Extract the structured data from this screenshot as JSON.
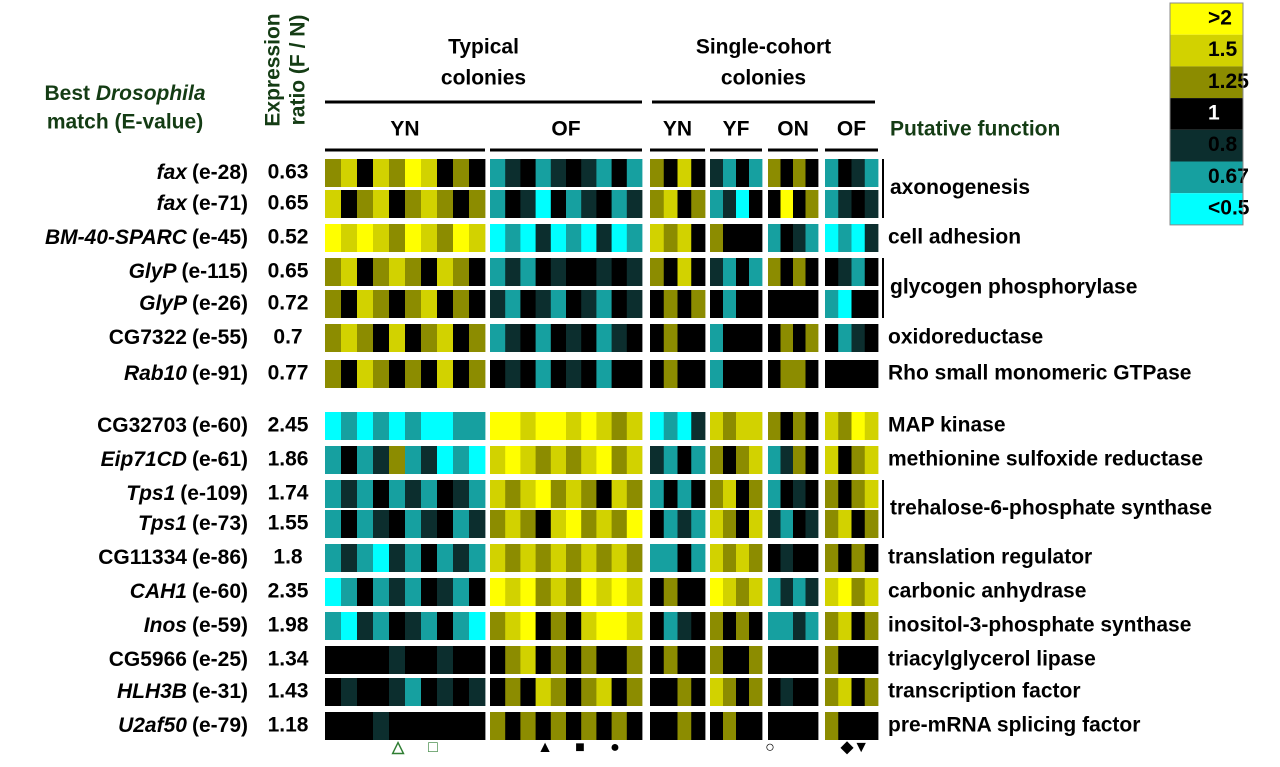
{
  "chart_data": {
    "type": "heatmap",
    "left_header": {
      "line1": "Best",
      "italic": "Drosophila",
      "line2": "match (E-value)"
    },
    "ratio_header": [
      "Expression",
      "ratio (F / N)"
    ],
    "function_header": "Putative function",
    "groups": [
      {
        "title": [
          "Typical",
          "colonies"
        ],
        "blocks": [
          "YN",
          "OF"
        ]
      },
      {
        "title": [
          "Single-cohort",
          "colonies"
        ],
        "blocks": [
          "YN",
          "YF",
          "ON",
          "OF"
        ]
      }
    ],
    "legend": [
      {
        "label": ">2",
        "color": "#ffff00"
      },
      {
        "label": "1.5",
        "color": "#d2d200"
      },
      {
        "label": "1.25",
        "color": "#8c8c00"
      },
      {
        "label": "1",
        "color": "#000000"
      },
      {
        "label": "0.8",
        "color": "#0c2e2e"
      },
      {
        "label": "0.67",
        "color": "#16a0a0"
      },
      {
        "label": "<0.5",
        "color": "#00ffff"
      }
    ],
    "rows": [
      {
        "name": "fax",
        "italic": true,
        "evalue": "(e-28)",
        "ratio": 0.63,
        "function": "axonogenesis",
        "cells": [
          [
            4,
            5,
            3,
            5,
            4,
            6,
            5,
            3,
            4,
            3
          ],
          [
            1,
            2,
            3,
            1,
            2,
            3,
            2,
            1,
            3,
            1
          ],
          [
            4,
            3,
            5,
            3
          ],
          [
            2,
            1,
            3,
            1
          ],
          [
            4,
            3,
            4,
            3
          ],
          [
            1,
            3,
            2,
            1
          ]
        ]
      },
      {
        "name": "fax",
        "italic": true,
        "evalue": "(e-71)",
        "ratio": 0.65,
        "function": null,
        "cells": [
          [
            5,
            3,
            4,
            5,
            3,
            4,
            5,
            4,
            3,
            4
          ],
          [
            1,
            3,
            2,
            0,
            3,
            1,
            2,
            3,
            1,
            2
          ],
          [
            4,
            5,
            3,
            4
          ],
          [
            1,
            2,
            0,
            3
          ],
          [
            3,
            6,
            3,
            4
          ],
          [
            1,
            2,
            3,
            2
          ]
        ]
      },
      {
        "name": "BM-40-SPARC",
        "italic": true,
        "evalue": "(e-45)",
        "ratio": 0.52,
        "function": "cell adhesion",
        "cells": [
          [
            6,
            5,
            6,
            5,
            4,
            6,
            5,
            4,
            6,
            5
          ],
          [
            0,
            1,
            0,
            2,
            0,
            1,
            0,
            2,
            0,
            1
          ],
          [
            5,
            4,
            5,
            3
          ],
          [
            4,
            3,
            3,
            3
          ],
          [
            1,
            3,
            2,
            1
          ],
          [
            0,
            1,
            0,
            2
          ]
        ]
      },
      {
        "name": "GlyP",
        "italic": true,
        "evalue": "(e-115)",
        "ratio": 0.65,
        "function": "glycogen phosphorylase",
        "cells": [
          [
            4,
            5,
            3,
            4,
            5,
            4,
            3,
            5,
            4,
            3
          ],
          [
            1,
            2,
            1,
            3,
            2,
            3,
            3,
            2,
            3,
            2
          ],
          [
            4,
            3,
            5,
            3
          ],
          [
            2,
            1,
            3,
            1
          ],
          [
            4,
            3,
            4,
            3
          ],
          [
            3,
            2,
            1,
            3
          ]
        ]
      },
      {
        "name": "GlyP",
        "italic": true,
        "evalue": "(e-26)",
        "ratio": 0.72,
        "function": null,
        "cells": [
          [
            4,
            3,
            5,
            4,
            3,
            4,
            5,
            3,
            4,
            3
          ],
          [
            2,
            1,
            3,
            2,
            1,
            3,
            2,
            1,
            3,
            2
          ],
          [
            3,
            4,
            3,
            4
          ],
          [
            3,
            1,
            3,
            3
          ],
          [
            3,
            3,
            3,
            3
          ],
          [
            1,
            0,
            3,
            3
          ]
        ]
      },
      {
        "name": "CG7322",
        "italic": false,
        "evalue": "(e-55)",
        "ratio": 0.7,
        "function": "oxidoreductase",
        "cells": [
          [
            4,
            5,
            4,
            3,
            5,
            3,
            4,
            5,
            3,
            4
          ],
          [
            1,
            2,
            3,
            1,
            3,
            2,
            3,
            1,
            2,
            3
          ],
          [
            3,
            4,
            3,
            3
          ],
          [
            1,
            3,
            3,
            3
          ],
          [
            3,
            4,
            3,
            4
          ],
          [
            3,
            1,
            2,
            3
          ]
        ]
      },
      {
        "name": "Rab10",
        "italic": true,
        "evalue": "(e-91)",
        "ratio": 0.77,
        "function": "Rho small monomeric GTPase",
        "cells": [
          [
            4,
            3,
            5,
            4,
            3,
            4,
            3,
            5,
            3,
            4
          ],
          [
            3,
            2,
            3,
            1,
            3,
            2,
            3,
            1,
            3,
            3
          ],
          [
            3,
            4,
            3,
            3
          ],
          [
            1,
            3,
            3,
            3
          ],
          [
            3,
            4,
            4,
            3
          ],
          [
            3,
            3,
            3,
            3
          ]
        ]
      },
      {
        "name": "CG32703",
        "italic": false,
        "evalue": "(e-60)",
        "ratio": 2.45,
        "function": "MAP kinase",
        "cells": [
          [
            0,
            1,
            0,
            1,
            0,
            1,
            0,
            0,
            1,
            1
          ],
          [
            6,
            6,
            5,
            6,
            6,
            5,
            6,
            5,
            4,
            5
          ],
          [
            0,
            1,
            0,
            2
          ],
          [
            5,
            4,
            5,
            5
          ],
          [
            4,
            3,
            4,
            3
          ],
          [
            5,
            4,
            6,
            5
          ]
        ]
      },
      {
        "name": "Eip71CD",
        "italic": true,
        "evalue": "(e-61)",
        "ratio": 1.86,
        "function": "methionine sulfoxide reductase",
        "cells": [
          [
            1,
            3,
            1,
            2,
            4,
            1,
            2,
            0,
            1,
            0
          ],
          [
            5,
            6,
            5,
            4,
            5,
            4,
            5,
            6,
            4,
            5
          ],
          [
            2,
            1,
            3,
            1
          ],
          [
            4,
            3,
            4,
            5
          ],
          [
            1,
            2,
            4,
            3
          ],
          [
            5,
            3,
            4,
            5
          ]
        ]
      },
      {
        "name": "Tps1",
        "italic": true,
        "evalue": "(e-109)",
        "ratio": 1.74,
        "function": "trehalose-6-phosphate synthase",
        "cells": [
          [
            1,
            2,
            1,
            3,
            1,
            2,
            1,
            3,
            2,
            1
          ],
          [
            5,
            4,
            5,
            6,
            4,
            5,
            4,
            3,
            5,
            4
          ],
          [
            1,
            3,
            1,
            3
          ],
          [
            4,
            5,
            3,
            4
          ],
          [
            1,
            3,
            2,
            3
          ],
          [
            4,
            3,
            4,
            5
          ]
        ]
      },
      {
        "name": "Tps1",
        "italic": true,
        "evalue": "(e-73)",
        "ratio": 1.55,
        "function": null,
        "cells": [
          [
            1,
            3,
            1,
            2,
            3,
            1,
            2,
            3,
            1,
            2
          ],
          [
            4,
            5,
            4,
            3,
            5,
            6,
            4,
            5,
            4,
            6
          ],
          [
            3,
            1,
            2,
            1
          ],
          [
            5,
            4,
            3,
            5
          ],
          [
            2,
            1,
            3,
            2
          ],
          [
            4,
            5,
            3,
            4
          ]
        ]
      },
      {
        "name": "CG11334",
        "italic": false,
        "evalue": "(e-86)",
        "ratio": 1.8,
        "function": "translation regulator",
        "cells": [
          [
            1,
            2,
            1,
            0,
            2,
            1,
            3,
            1,
            2,
            1
          ],
          [
            5,
            4,
            5,
            4,
            5,
            4,
            5,
            4,
            5,
            4
          ],
          [
            1,
            1,
            3,
            1
          ],
          [
            5,
            4,
            5,
            4
          ],
          [
            3,
            2,
            3,
            3
          ],
          [
            4,
            3,
            4,
            3
          ]
        ]
      },
      {
        "name": "CAH1",
        "italic": true,
        "evalue": "(e-60)",
        "ratio": 2.35,
        "function": "carbonic anhydrase",
        "cells": [
          [
            0,
            1,
            3,
            1,
            2,
            1,
            3,
            2,
            1,
            3
          ],
          [
            6,
            5,
            6,
            4,
            5,
            4,
            6,
            5,
            6,
            5
          ],
          [
            3,
            4,
            3,
            3
          ],
          [
            6,
            5,
            4,
            5
          ],
          [
            1,
            2,
            1,
            2
          ],
          [
            5,
            6,
            4,
            5
          ]
        ]
      },
      {
        "name": "Inos",
        "italic": true,
        "evalue": "(e-59)",
        "ratio": 1.98,
        "function": "inositol-3-phosphate synthase",
        "cells": [
          [
            1,
            0,
            2,
            1,
            3,
            2,
            1,
            3,
            1,
            0
          ],
          [
            4,
            5,
            6,
            3,
            4,
            3,
            5,
            6,
            6,
            5
          ],
          [
            3,
            1,
            2,
            3
          ],
          [
            4,
            3,
            4,
            3
          ],
          [
            1,
            1,
            2,
            1
          ],
          [
            4,
            5,
            3,
            4
          ]
        ]
      },
      {
        "name": "CG5966",
        "italic": false,
        "evalue": "(e-25)",
        "ratio": 1.34,
        "function": "triacylglycerol lipase",
        "cells": [
          [
            3,
            3,
            3,
            3,
            2,
            3,
            3,
            2,
            3,
            3
          ],
          [
            3,
            4,
            5,
            3,
            4,
            3,
            4,
            3,
            3,
            4
          ],
          [
            3,
            4,
            3,
            3
          ],
          [
            4,
            3,
            3,
            4
          ],
          [
            3,
            3,
            3,
            3
          ],
          [
            4,
            3,
            3,
            3
          ]
        ]
      },
      {
        "name": "HLH3B",
        "italic": true,
        "evalue": "(e-31)",
        "ratio": 1.43,
        "function": "transcription factor",
        "cells": [
          [
            3,
            2,
            3,
            3,
            2,
            1,
            3,
            2,
            3,
            2
          ],
          [
            3,
            4,
            3,
            5,
            4,
            3,
            4,
            5,
            3,
            4
          ],
          [
            3,
            3,
            4,
            3
          ],
          [
            5,
            4,
            3,
            4
          ],
          [
            3,
            2,
            3,
            3
          ],
          [
            4,
            5,
            3,
            4
          ]
        ]
      },
      {
        "name": "U2af50",
        "italic": true,
        "evalue": "(e-79)",
        "ratio": 1.18,
        "function": "pre-mRNA splicing factor",
        "cells": [
          [
            3,
            3,
            3,
            2,
            3,
            3,
            3,
            3,
            3,
            3
          ],
          [
            4,
            3,
            4,
            3,
            4,
            3,
            4,
            3,
            4,
            3
          ],
          [
            3,
            3,
            4,
            3
          ],
          [
            3,
            4,
            3,
            3
          ],
          [
            3,
            3,
            3,
            3
          ],
          [
            4,
            3,
            3,
            3
          ]
        ]
      }
    ],
    "markers": [
      {
        "symbol": "△",
        "color": "#2e7d32"
      },
      {
        "symbol": "□",
        "color": "#2e7d32"
      },
      {
        "symbol": "▲",
        "color": "#000000"
      },
      {
        "symbol": "■",
        "color": "#000000"
      },
      {
        "symbol": "●",
        "color": "#000000"
      },
      {
        "symbol": "○",
        "color": "#000000"
      },
      {
        "symbol": "◆▼",
        "color": "#000000"
      }
    ]
  }
}
